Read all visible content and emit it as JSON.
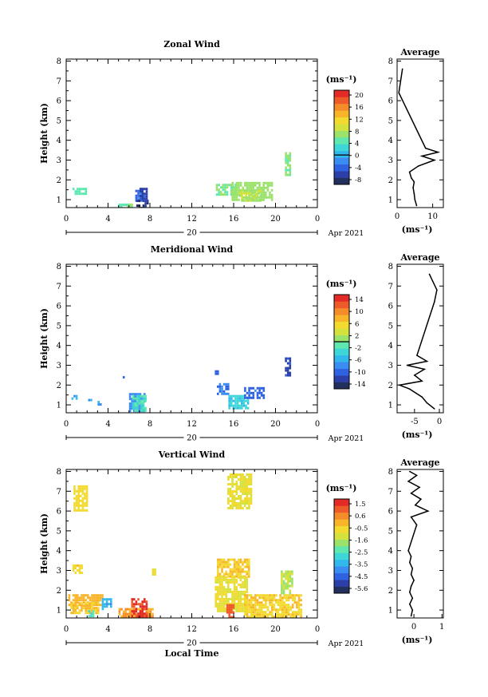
{
  "chart_data": [
    {
      "type": "heatmap",
      "title": "Zonal Wind",
      "xlabel": "",
      "ylabel": "Height (km)",
      "x_ticks": [
        "0",
        "4",
        "8",
        "12",
        "16",
        "20",
        "0"
      ],
      "y_ticks": [
        "1",
        "2",
        "3",
        "4",
        "5",
        "6",
        "7",
        "8"
      ],
      "xlim": [
        0,
        24
      ],
      "ylim": [
        0.6,
        8.1
      ],
      "date_day": "20",
      "date_label": "Apr 2021",
      "colorbar": {
        "unit": "(ms⁻¹)",
        "ticks": [
          "20",
          "16",
          "12",
          "8",
          "4",
          "0",
          "-4",
          "-8"
        ],
        "range": [
          -10,
          22
        ],
        "contour_level": 0
      },
      "patches": [
        {
          "t0": 0.6,
          "t1": 1.8,
          "h0": 1.35,
          "h1": 1.6,
          "v": 5
        },
        {
          "t0": 5.0,
          "t1": 6.2,
          "h0": 0.6,
          "h1": 0.8,
          "v": 6
        },
        {
          "t0": 6.6,
          "t1": 7.3,
          "h0": 0.9,
          "h1": 1.5,
          "v": -4
        },
        {
          "t0": 6.7,
          "t1": 7.7,
          "h0": 0.6,
          "h1": 1.0,
          "v": -8
        },
        {
          "t0": 7.0,
          "t1": 7.6,
          "h0": 1.1,
          "h1": 1.6,
          "v": -6
        },
        {
          "t0": 14.3,
          "t1": 16.1,
          "h0": 1.3,
          "h1": 1.8,
          "v": 6
        },
        {
          "t0": 15.8,
          "t1": 19.7,
          "h0": 1.0,
          "h1": 1.9,
          "v": 7
        },
        {
          "t0": 16.5,
          "t1": 18.5,
          "h0": 1.0,
          "h1": 1.5,
          "v": 8
        },
        {
          "t0": 20.9,
          "t1": 21.3,
          "h0": 2.3,
          "h1": 3.4,
          "v": 6
        }
      ],
      "profile": {
        "title": "Average",
        "unit": "(ms⁻¹)",
        "x_ticks": [
          "0",
          "10"
        ],
        "xlim": [
          0,
          13
        ],
        "heights": [
          0.7,
          1.0,
          1.3,
          1.6,
          1.9,
          2.1,
          2.4,
          2.7,
          3.0,
          3.2,
          3.4,
          3.6,
          6.4,
          7.6
        ],
        "values": [
          5.5,
          5.0,
          4.8,
          4.5,
          4.8,
          4.0,
          3.5,
          6.0,
          10.5,
          7.0,
          11.5,
          8.0,
          0.5,
          1.5
        ]
      }
    },
    {
      "type": "heatmap",
      "title": "Meridional Wind",
      "xlabel": "",
      "ylabel": "Height (km)",
      "x_ticks": [
        "0",
        "4",
        "8",
        "12",
        "16",
        "20",
        "0"
      ],
      "y_ticks": [
        "1",
        "2",
        "3",
        "4",
        "5",
        "6",
        "7",
        "8"
      ],
      "xlim": [
        0,
        24
      ],
      "ylim": [
        0.6,
        8.1
      ],
      "date_day": "20",
      "date_label": "Apr 2021",
      "colorbar": {
        "unit": "(ms⁻¹)",
        "ticks": [
          "14",
          "10",
          "6",
          "2",
          "-2",
          "-6",
          "-10",
          "-14"
        ],
        "range": [
          -16,
          16
        ],
        "contour_level": 0
      },
      "patches": [
        {
          "t0": 0.5,
          "t1": 0.9,
          "h0": 1.3,
          "h1": 1.5,
          "v": -7
        },
        {
          "t0": 1.5,
          "t1": 2.4,
          "h0": 1.2,
          "h1": 1.3,
          "v": -6
        },
        {
          "t0": 3.0,
          "t1": 3.3,
          "h0": 1.05,
          "h1": 1.2,
          "v": -7
        },
        {
          "t0": 5.4,
          "t1": 5.6,
          "h0": 2.35,
          "h1": 2.45,
          "v": -10
        },
        {
          "t0": 6.0,
          "t1": 7.5,
          "h0": 0.7,
          "h1": 1.6,
          "v": -8
        },
        {
          "t0": 6.3,
          "t1": 7.6,
          "h0": 0.7,
          "h1": 1.5,
          "v": -2
        },
        {
          "t0": 14.2,
          "t1": 14.5,
          "h0": 2.6,
          "h1": 2.75,
          "v": -10
        },
        {
          "t0": 14.4,
          "t1": 15.4,
          "h0": 1.5,
          "h1": 2.1,
          "v": -9
        },
        {
          "t0": 15.5,
          "t1": 17.3,
          "h0": 0.8,
          "h1": 1.5,
          "v": -4
        },
        {
          "t0": 17.0,
          "t1": 18.8,
          "h0": 1.3,
          "h1": 1.9,
          "v": -10
        },
        {
          "t0": 20.9,
          "t1": 21.3,
          "h0": 2.5,
          "h1": 3.4,
          "v": -12
        }
      ],
      "profile": {
        "title": "Average",
        "unit": "(ms⁻¹)",
        "x_ticks": [
          "-5",
          "0"
        ],
        "xlim": [
          -8.5,
          0.8
        ],
        "heights": [
          0.8,
          1.1,
          1.4,
          1.8,
          2.0,
          2.2,
          2.5,
          2.8,
          3.0,
          3.2,
          3.5,
          6.2,
          6.8,
          7.6
        ],
        "values": [
          -1.0,
          -2.5,
          -3.5,
          -6.0,
          -8.0,
          -3.5,
          -5.0,
          -3.0,
          -6.5,
          -2.5,
          -4.5,
          -1.0,
          -0.5,
          -2.0
        ]
      }
    },
    {
      "type": "heatmap",
      "title": "Vertical Wind",
      "xlabel": "Local Time",
      "ylabel": "Height (km)",
      "x_ticks": [
        "0",
        "4",
        "8",
        "12",
        "16",
        "20",
        "0"
      ],
      "y_ticks": [
        "1",
        "2",
        "3",
        "4",
        "5",
        "6",
        "7",
        "8"
      ],
      "xlim": [
        0,
        24
      ],
      "ylim": [
        0.6,
        8.1
      ],
      "date_day": "20",
      "date_label": "Apr 2021",
      "colorbar": {
        "unit": "(ms⁻¹)",
        "ticks": [
          "1.5",
          "0.6",
          "-0.5",
          "-1.6",
          "-2.5",
          "-3.5",
          "-4.5",
          "-5.6"
        ],
        "range": [
          -6.0,
          2.0
        ],
        "contour_level": null
      },
      "patches": [
        {
          "t0": 0.2,
          "t1": 3.4,
          "h0": 1.2,
          "h1": 1.8,
          "v": 0.0
        },
        {
          "t0": 0.4,
          "t1": 3.0,
          "h0": 0.9,
          "h1": 1.4,
          "v": -0.3
        },
        {
          "t0": 0.7,
          "t1": 1.9,
          "h0": 6.0,
          "h1": 7.3,
          "v": -0.6
        },
        {
          "t0": 0.6,
          "t1": 1.4,
          "h0": 2.9,
          "h1": 3.3,
          "v": -0.5
        },
        {
          "t0": 2.1,
          "t1": 2.6,
          "h0": 0.7,
          "h1": 1.0,
          "v": -2.5
        },
        {
          "t0": 3.4,
          "t1": 4.3,
          "h0": 1.1,
          "h1": 1.6,
          "v": -3.5
        },
        {
          "t0": 5.0,
          "t1": 8.2,
          "h0": 0.6,
          "h1": 1.1,
          "v": 0.3
        },
        {
          "t0": 6.2,
          "t1": 7.6,
          "h0": 0.6,
          "h1": 1.6,
          "v": 1.5
        },
        {
          "t0": 8.2,
          "t1": 8.5,
          "h0": 2.8,
          "h1": 3.1,
          "v": -0.8
        },
        {
          "t0": 14.4,
          "t1": 17.4,
          "h0": 2.7,
          "h1": 3.6,
          "v": -0.3
        },
        {
          "t0": 14.2,
          "t1": 17.2,
          "h0": 0.9,
          "h1": 2.7,
          "v": -0.8
        },
        {
          "t0": 15.3,
          "t1": 16.0,
          "h0": 0.6,
          "h1": 1.3,
          "v": 1.2
        },
        {
          "t0": 15.4,
          "t1": 17.6,
          "h0": 6.1,
          "h1": 7.9,
          "v": -0.8
        },
        {
          "t0": 17.0,
          "t1": 22.5,
          "h0": 0.6,
          "h1": 1.8,
          "v": -0.4
        },
        {
          "t0": 20.5,
          "t1": 21.5,
          "h0": 1.8,
          "h1": 3.0,
          "v": -1.4
        }
      ],
      "profile": {
        "title": "Average",
        "unit": "(ms⁻¹)",
        "x_ticks": [
          "0",
          "1"
        ],
        "xlim": [
          -0.6,
          1.05
        ],
        "heights": [
          0.7,
          1.0,
          1.3,
          1.6,
          1.9,
          2.2,
          2.5,
          2.8,
          3.1,
          3.4,
          3.7,
          4.0,
          5.3,
          5.7,
          6.0,
          6.3,
          6.6,
          6.9,
          7.2,
          7.5,
          7.8,
          8.0
        ],
        "values": [
          -0.1,
          -0.05,
          -0.15,
          -0.05,
          -0.15,
          -0.1,
          0.0,
          -0.1,
          -0.05,
          -0.15,
          -0.1,
          -0.2,
          0.1,
          -0.1,
          0.5,
          0.05,
          0.25,
          -0.1,
          0.2,
          -0.2,
          0.1,
          -0.15
        ]
      }
    }
  ]
}
